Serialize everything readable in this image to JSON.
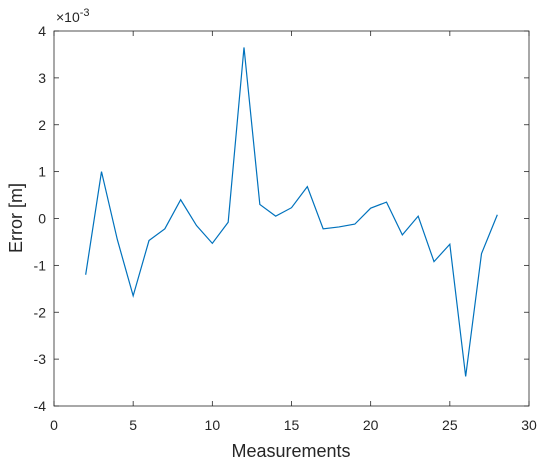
{
  "chart_data": {
    "type": "line",
    "xlabel": "Measurements",
    "ylabel": "Error [m]",
    "y_multiplier": {
      "base": "×10",
      "power": "-3"
    },
    "x": [
      2,
      3,
      4,
      5,
      6,
      7,
      8,
      9,
      10,
      11,
      12,
      13,
      14,
      15,
      16,
      17,
      18,
      19,
      20,
      21,
      22,
      23,
      24,
      25,
      26,
      27,
      28
    ],
    "series": [
      {
        "color": "#0072bd",
        "values": [
          -1.2,
          1.0,
          -0.45,
          -1.65,
          -0.47,
          -0.22,
          0.4,
          -0.15,
          -0.53,
          -0.08,
          3.65,
          0.3,
          0.05,
          0.23,
          0.68,
          -0.22,
          -0.18,
          -0.12,
          0.22,
          0.35,
          -0.35,
          0.05,
          -0.92,
          -0.55,
          -3.37,
          -0.75,
          0.08
        ]
      }
    ],
    "xlim": [
      0,
      30
    ],
    "xticks": [
      0,
      5,
      10,
      15,
      20,
      25,
      30
    ],
    "ylim": [
      -4,
      4
    ],
    "yticks": [
      -4,
      -3,
      -2,
      -1,
      0,
      1,
      2,
      3,
      4
    ]
  }
}
